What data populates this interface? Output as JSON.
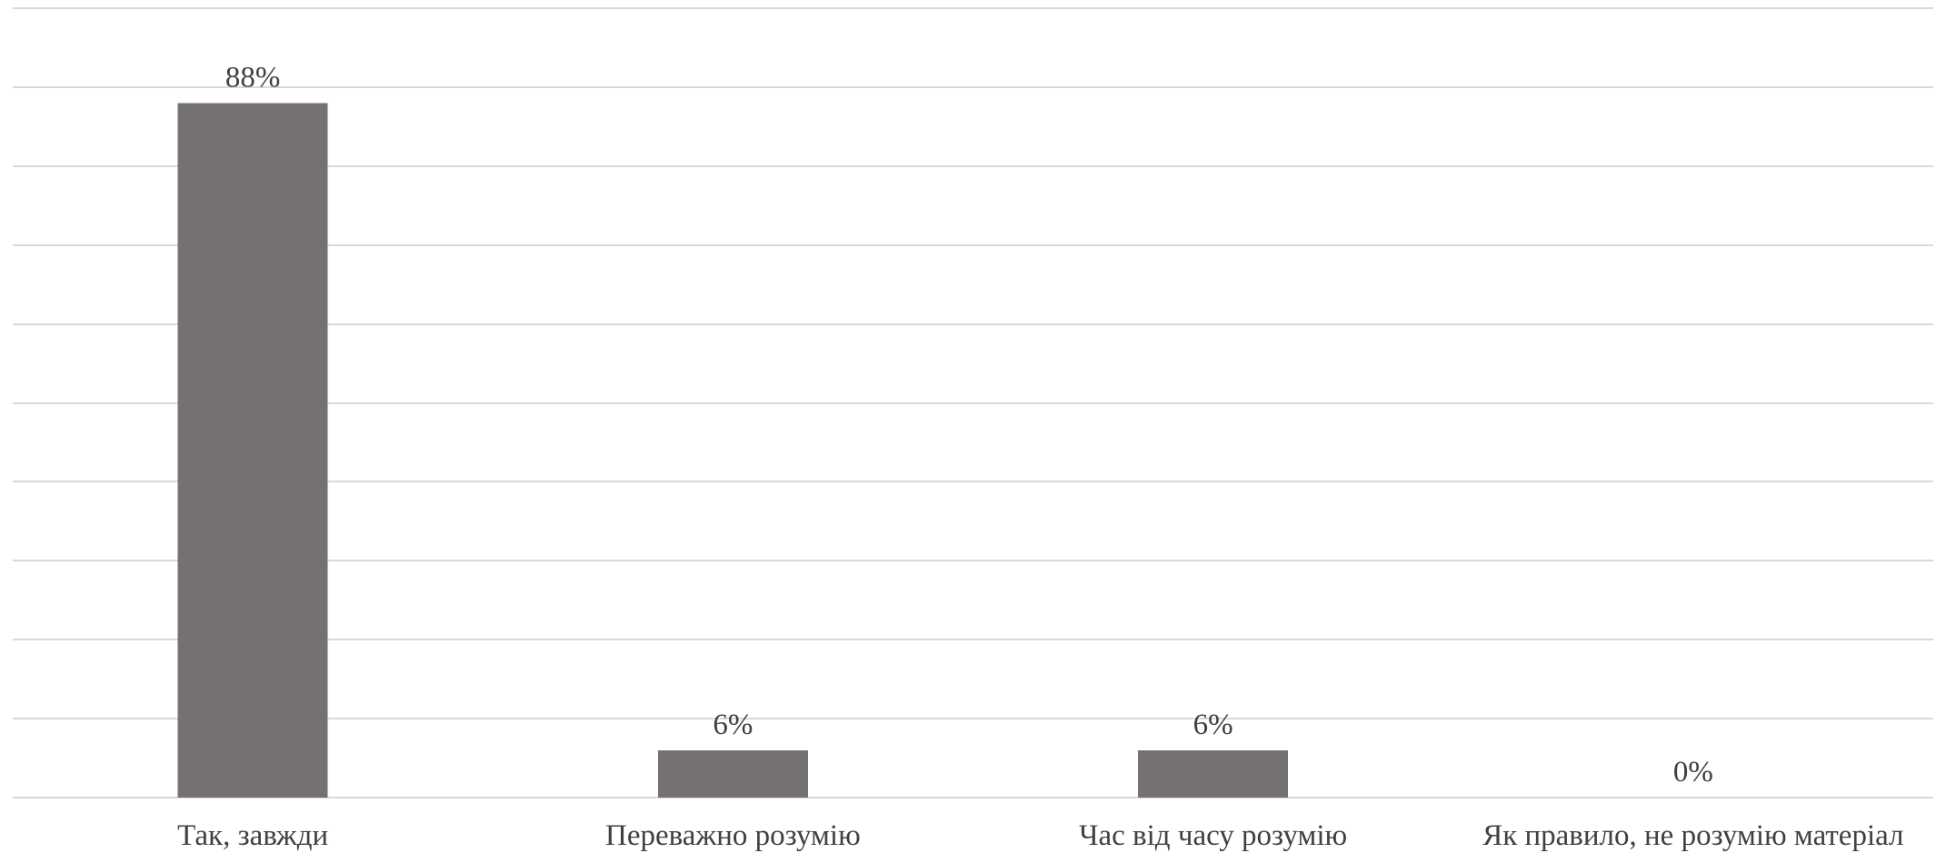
{
  "chart_data": {
    "type": "bar",
    "categories": [
      "Так, завжди",
      "Переважно розумію",
      "Час від часу розумію",
      "Як правило, не розумію матеріал"
    ],
    "values": [
      88,
      6,
      6,
      0
    ],
    "data_labels": [
      "88%",
      "6%",
      "6%",
      "0%"
    ],
    "ylim": [
      0,
      100
    ],
    "grid": true,
    "colors": {
      "bar": "#767171",
      "grid": "#d9d9d9",
      "text": "#404040"
    }
  }
}
